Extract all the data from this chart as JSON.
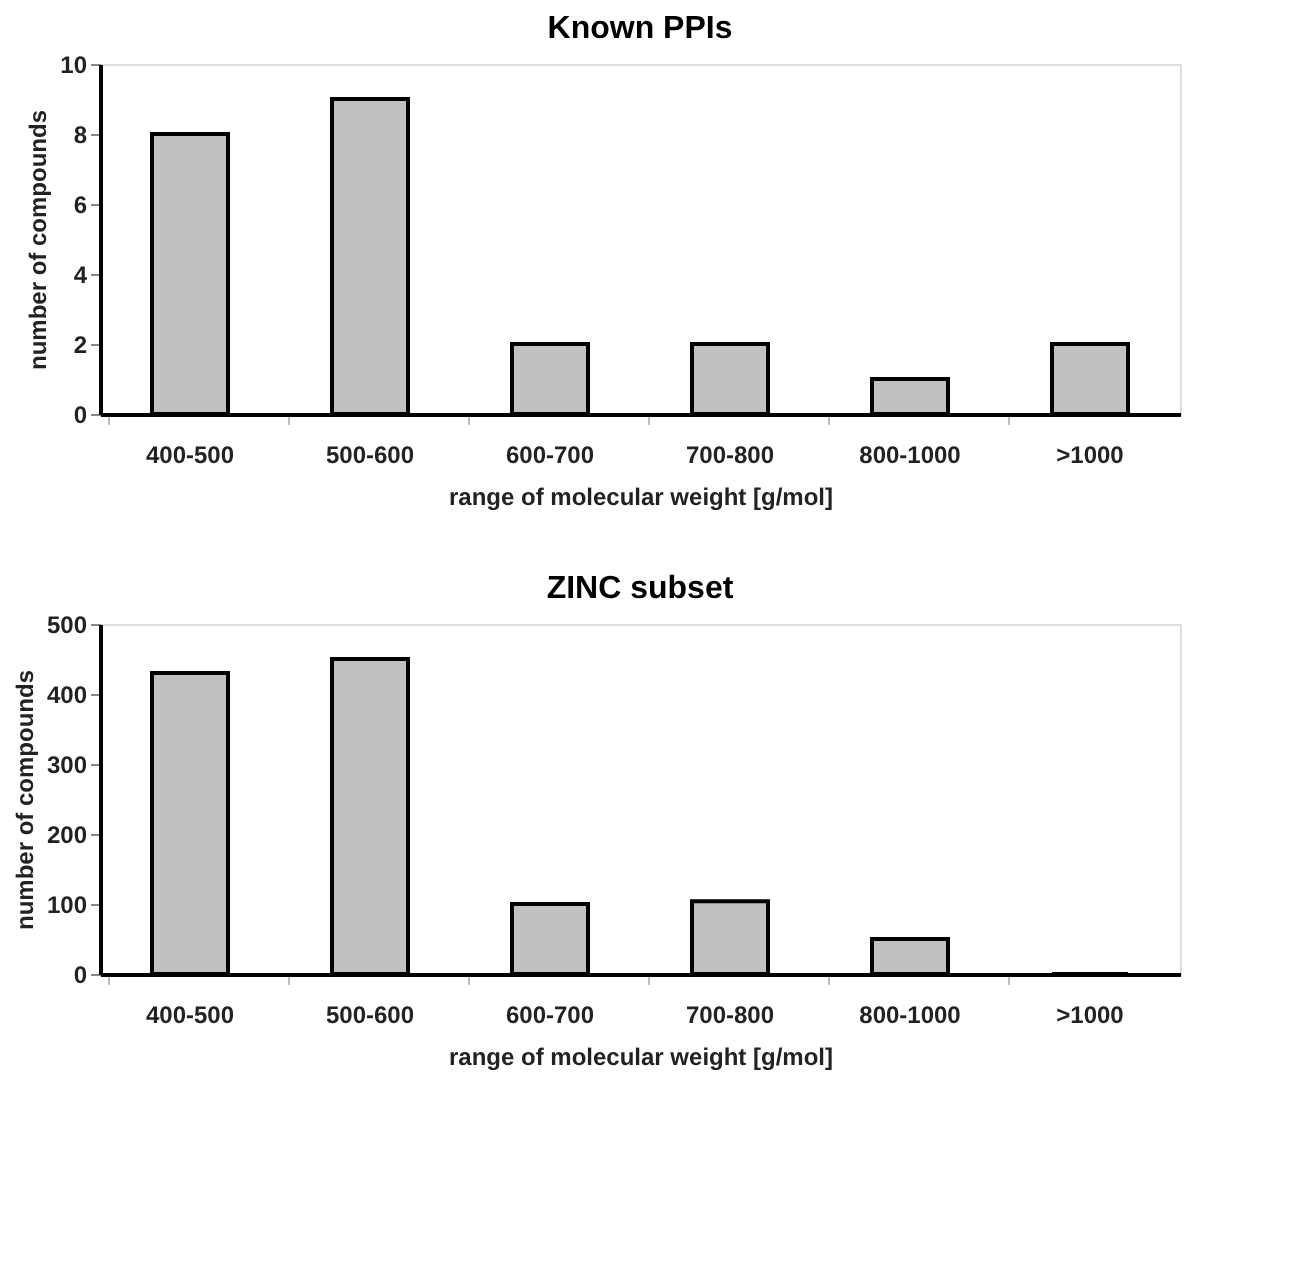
{
  "chart_data": [
    {
      "type": "bar",
      "title": "Known PPIs",
      "xlabel": "range of molecular weight [g/mol]",
      "ylabel": "number of compounds",
      "categories": [
        "400-500",
        "500-600",
        "600-700",
        "700-800",
        "800-1000",
        ">1000"
      ],
      "values": [
        8,
        9,
        2,
        2,
        1,
        2
      ],
      "color": "#c0c0c0",
      "ylim": [
        0,
        10
      ],
      "yticks": [
        0,
        2,
        4,
        6,
        8,
        10
      ]
    },
    {
      "type": "bar",
      "title": "ZINC subset",
      "xlabel": "range of molecular weight [g/mol]",
      "ylabel": "number of compounds",
      "categories": [
        "400-500",
        "500-600",
        "600-700",
        "700-800",
        "800-1000",
        ">1000"
      ],
      "values": [
        430,
        450,
        100,
        104,
        50,
        0
      ],
      "color": "#c0c0c0",
      "ylim": [
        0,
        500
      ],
      "yticks": [
        0,
        100,
        200,
        300,
        400,
        500
      ]
    }
  ]
}
